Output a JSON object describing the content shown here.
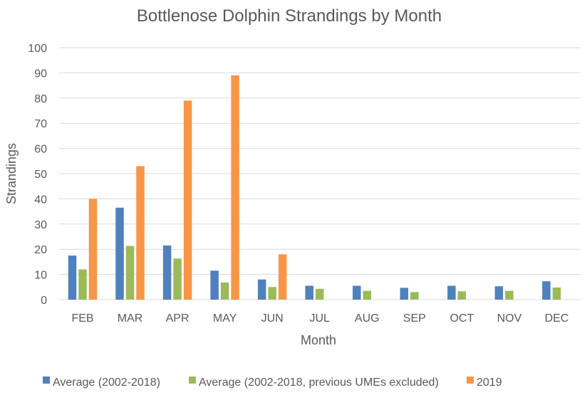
{
  "chart_data": {
    "type": "bar",
    "title": "Bottlenose Dolphin Strandings by Month",
    "xlabel": "Month",
    "ylabel": "Strandings",
    "ylim": [
      0,
      100
    ],
    "yticks": [
      0,
      10,
      20,
      30,
      40,
      50,
      60,
      70,
      80,
      90,
      100
    ],
    "grid": true,
    "legend_position": "bottom",
    "categories": [
      "FEB",
      "MAR",
      "APR",
      "MAY",
      "JUN",
      "JUL",
      "AUG",
      "SEP",
      "OCT",
      "NOV",
      "DEC"
    ],
    "series": [
      {
        "name": "Average (2002-2018)",
        "color": "#4f81bd",
        "values": [
          17.5,
          36.5,
          21.5,
          11.5,
          8,
          5.5,
          5.5,
          4.7,
          5.5,
          5.3,
          7.3
        ]
      },
      {
        "name": "Average (2002-2018, previous UMEs excluded)",
        "color": "#9bbb59",
        "values": [
          12,
          21.3,
          16.3,
          6.8,
          5,
          4.3,
          3.5,
          3,
          3.3,
          3.5,
          4.8
        ]
      },
      {
        "name": "2019",
        "color": "#f79646",
        "values": [
          40,
          53,
          79,
          89,
          18,
          null,
          null,
          null,
          null,
          null,
          null
        ]
      }
    ]
  }
}
